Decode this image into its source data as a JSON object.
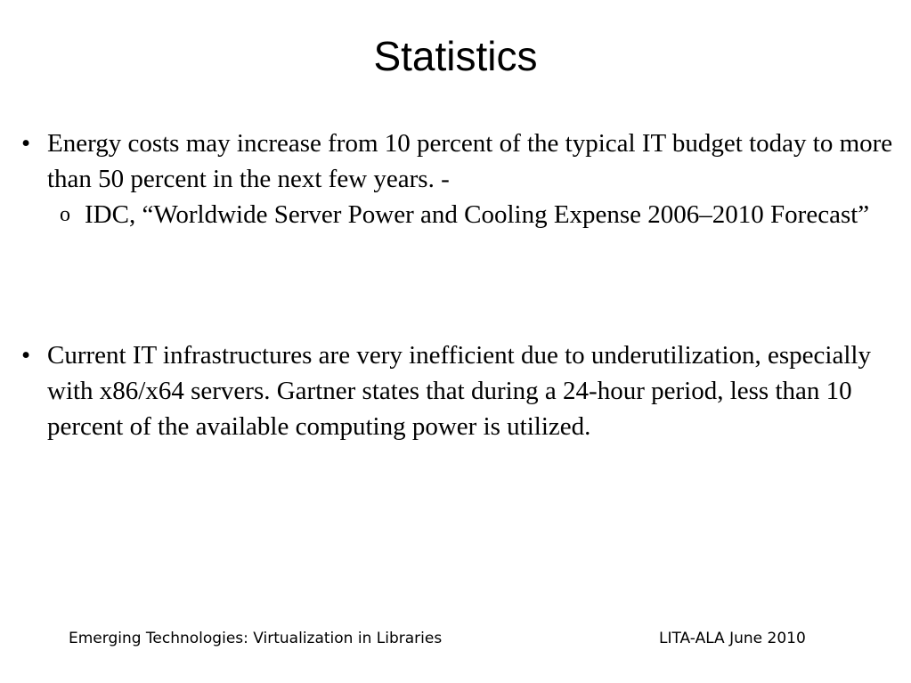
{
  "slide": {
    "title": "Statistics",
    "bullets": [
      {
        "marker": "•",
        "text": "Energy costs may increase from 10 percent of the typical IT budget today to more than 50 percent in the next few years. -",
        "sub": {
          "marker": "o",
          "text": "IDC, “Worldwide Server Power and Cooling Expense 2006–2010 Forecast”"
        }
      },
      {
        "marker": "•",
        "text": "Current IT infrastructures are very inefficient due to underutilization, especially with x86/x64 servers. Gartner states that during a 24-hour period, less than 10 percent of the available computing power is utilized."
      }
    ],
    "footer": {
      "left": "Emerging Technologies: Virtualization in Libraries",
      "right": "LITA-ALA June 2010"
    }
  }
}
